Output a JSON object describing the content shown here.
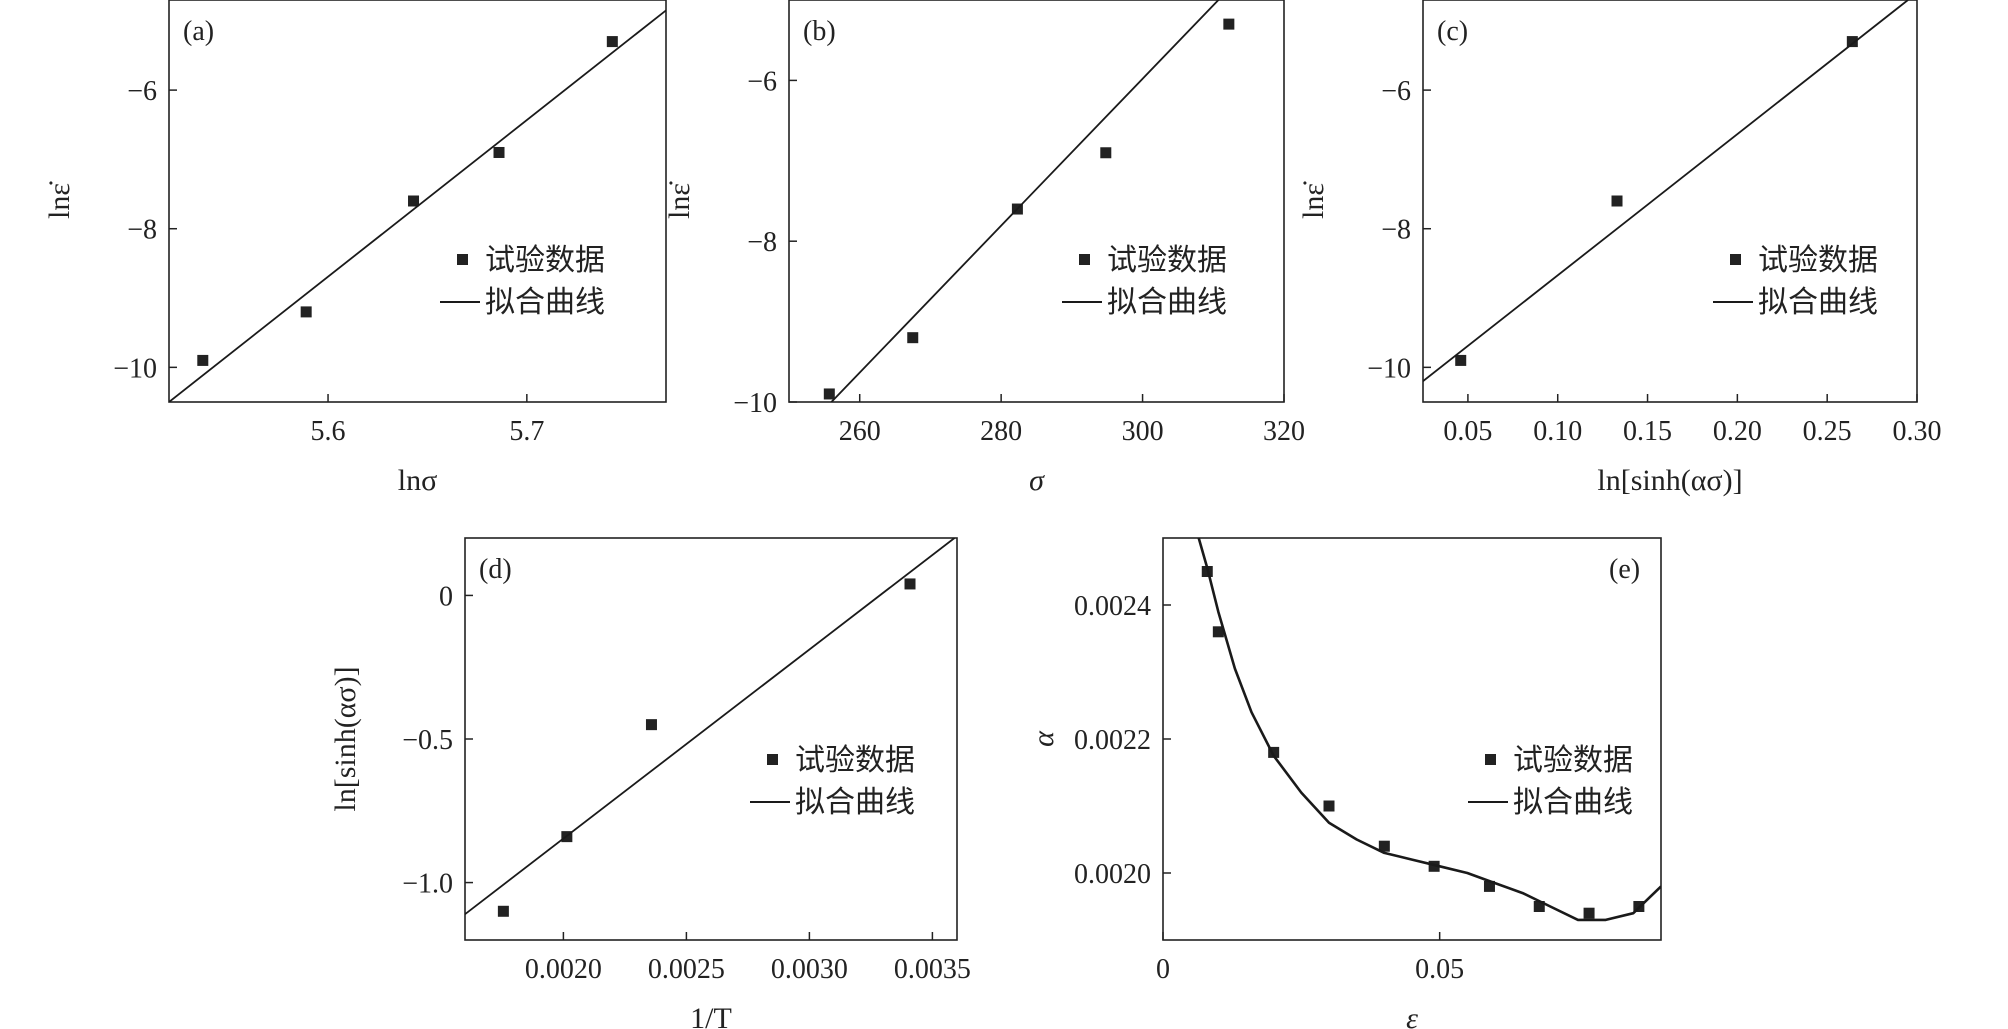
{
  "legend": {
    "data_label": "试验数据",
    "fit_label": "拟合曲线"
  },
  "colors": {
    "marker": "#222222",
    "line": "#1a1a1a",
    "frame": "#222222"
  },
  "chart_data": [
    {
      "id": "a",
      "type": "scatter",
      "panel_label": "(a)",
      "xlabel": "lnσ",
      "ylabel": "lnε̇",
      "xlim": [
        5.52,
        5.77
      ],
      "ylim": [
        -10.5,
        -4.7
      ],
      "xticks": [
        5.6,
        5.7
      ],
      "xtick_labels": [
        "5.6",
        "5.7"
      ],
      "yticks": [
        -10,
        -8,
        -6
      ],
      "ytick_labels": [
        "−10",
        "−8",
        "−6"
      ],
      "series": [
        {
          "name": "试验数据",
          "kind": "points",
          "x": [
            5.537,
            5.589,
            5.643,
            5.686,
            5.743
          ],
          "y": [
            -9.9,
            -9.2,
            -7.6,
            -6.9,
            -5.3
          ]
        },
        {
          "name": "拟合曲线",
          "kind": "line",
          "x": [
            5.52,
            5.77
          ],
          "y": [
            -10.5,
            -4.85
          ]
        }
      ],
      "legend_position": "right"
    },
    {
      "id": "b",
      "type": "scatter",
      "panel_label": "(b)",
      "xlabel": "σ",
      "ylabel": "lnε̇",
      "xlim": [
        250,
        320
      ],
      "ylim": [
        -10,
        -5
      ],
      "xticks": [
        260,
        280,
        300,
        320
      ],
      "xtick_labels": [
        "260",
        "280",
        "300",
        "320"
      ],
      "yticks": [
        -10,
        -8,
        -6
      ],
      "ytick_labels": [
        "−10",
        "−8",
        "−6"
      ],
      "series": [
        {
          "name": "试验数据",
          "kind": "points",
          "x": [
            255.7,
            267.5,
            282.3,
            294.8,
            312.2
          ],
          "y": [
            -9.9,
            -9.2,
            -7.6,
            -6.9,
            -5.3
          ]
        },
        {
          "name": "拟合曲线",
          "kind": "line",
          "x": [
            256,
            314
          ],
          "y": [
            -10,
            -4.7
          ]
        }
      ],
      "legend_position": "right"
    },
    {
      "id": "c",
      "type": "scatter",
      "panel_label": "(c)",
      "xlabel": "ln[sinh(ασ)]",
      "ylabel": "lnε̇",
      "xlim": [
        0.025,
        0.3
      ],
      "ylim": [
        -10.5,
        -4.7
      ],
      "xticks": [
        0.05,
        0.1,
        0.15,
        0.2,
        0.25,
        0.3
      ],
      "xtick_labels": [
        "0.05",
        "0.10",
        "0.15",
        "0.20",
        "0.25",
        "0.30"
      ],
      "yticks": [
        -10,
        -8,
        -6
      ],
      "ytick_labels": [
        "−10",
        "−8",
        "−6"
      ],
      "series": [
        {
          "name": "试验数据",
          "kind": "points",
          "x": [
            0.046,
            0.133,
            0.264
          ],
          "y": [
            -9.9,
            -7.6,
            -5.3
          ]
        },
        {
          "name": "拟合曲线",
          "kind": "line",
          "x": [
            0.025,
            0.295
          ],
          "y": [
            -10.2,
            -4.7
          ]
        }
      ],
      "legend_position": "right"
    },
    {
      "id": "d",
      "type": "scatter",
      "panel_label": "(d)",
      "xlabel": "1/T",
      "ylabel": "ln[sinh(ασ)]",
      "xlim": [
        0.0016,
        0.0036
      ],
      "ylim": [
        -1.2,
        0.2
      ],
      "xticks": [
        0.002,
        0.0025,
        0.003,
        0.0035
      ],
      "xtick_labels": [
        "0.0020",
        "0.0025",
        "0.0030",
        "0.0035"
      ],
      "yticks": [
        -1.0,
        -0.5,
        0
      ],
      "ytick_labels": [
        "−1.0",
        "−0.5",
        "0"
      ],
      "series": [
        {
          "name": "试验数据",
          "kind": "points",
          "x": [
            0.001756,
            0.002014,
            0.002358,
            0.003409
          ],
          "y": [
            -1.1,
            -0.84,
            -0.45,
            0.04
          ]
        },
        {
          "name": "拟合曲线",
          "kind": "line",
          "x": [
            0.0016,
            0.00359
          ],
          "y": [
            -1.11,
            0.2
          ]
        }
      ],
      "legend_position": "right"
    },
    {
      "id": "e",
      "type": "line",
      "panel_label": "(e)",
      "xlabel": "ε",
      "ylabel": "α",
      "xlim": [
        0,
        0.09
      ],
      "ylim": [
        0.0019,
        0.0025
      ],
      "xticks": [
        0,
        0.05
      ],
      "xtick_labels": [
        "0",
        "0.05"
      ],
      "yticks": [
        0.002,
        0.0022,
        0.0024
      ],
      "ytick_labels": [
        "0.0020",
        "0.0022",
        "0.0024"
      ],
      "series": [
        {
          "name": "试验数据",
          "kind": "points",
          "x": [
            0.008,
            0.01,
            0.02,
            0.03,
            0.04,
            0.049,
            0.059,
            0.068,
            0.077,
            0.086
          ],
          "y": [
            0.00245,
            0.00236,
            0.00218,
            0.0021,
            0.00204,
            0.00201,
            0.00198,
            0.00195,
            0.00194,
            0.00195
          ]
        },
        {
          "name": "拟合曲线",
          "kind": "curve",
          "x": [
            0.0061,
            0.008,
            0.01,
            0.013,
            0.016,
            0.02,
            0.025,
            0.03,
            0.035,
            0.04,
            0.045,
            0.05,
            0.055,
            0.06,
            0.065,
            0.07,
            0.075,
            0.08,
            0.085,
            0.09
          ],
          "y": [
            0.00251,
            0.002455,
            0.00239,
            0.002305,
            0.00224,
            0.002175,
            0.00212,
            0.002075,
            0.00205,
            0.00203,
            0.00202,
            0.00201,
            0.002,
            0.001985,
            0.00197,
            0.00195,
            0.00193,
            0.00193,
            0.00194,
            0.00198
          ]
        }
      ],
      "legend_position": "right"
    }
  ]
}
